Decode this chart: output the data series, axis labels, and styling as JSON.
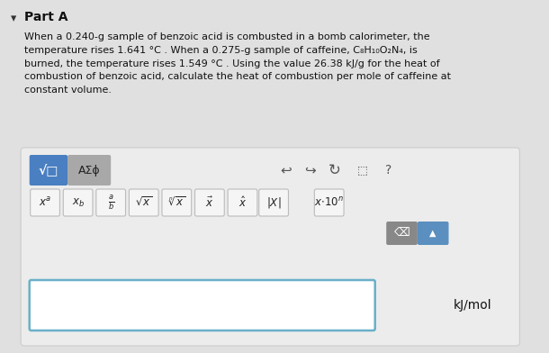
{
  "bg_color": "#e0e0e0",
  "panel_facecolor": "#ececec",
  "panel_edgecolor": "#cccccc",
  "blue_btn_color": "#4a7fc1",
  "gray_btn_color": "#a8a8a8",
  "math_btn_facecolor": "#f5f5f5",
  "math_btn_edgecolor": "#bbbbbb",
  "delete_btn_color": "#888888",
  "small_blue_btn_color": "#5a8fc0",
  "input_box_edge": "#6ab0c8",
  "input_box_face": "#ffffff",
  "title": "Part A",
  "unit_text": "kJ/mol",
  "body_line1": "When a 0.240-g sample of benzoic acid is combusted in a bomb calorimeter, the",
  "body_line2": "temperature rises 1.641 °C . When a 0.275-g sample of caffeine, C₈H₁₀O₂N₄, is",
  "body_line3": "burned, the temperature rises 1.549 °C . Using the value 26.38 kJ/g for the heat of",
  "body_line4": "combustion of benzoic acid, calculate the heat of combustion per mole of caffeine at",
  "body_line5": "constant volume.",
  "blue_btn_label": "√□",
  "gray_btn_label": "ΑΣϕ",
  "icon_undo": "↩",
  "icon_redo": "↪",
  "icon_refresh": "↻",
  "icon_question": "?",
  "kj_mol": "kJ/mol"
}
